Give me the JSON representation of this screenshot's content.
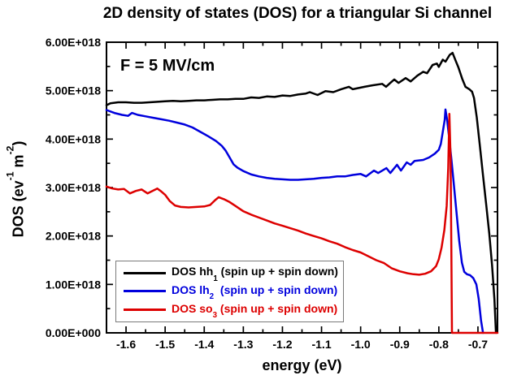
{
  "chart_data": {
    "type": "line",
    "title": "2D density of states (DOS) for a triangular Si channel",
    "annotation": "F = 5 MV/cm",
    "xlabel": "energy (eV)",
    "ylabel": "DOS (ev^-1 m^-2)",
    "ylabel_parts": [
      {
        "text": "DOS (ev"
      },
      {
        "sup": "-1"
      },
      {
        "text": " m"
      },
      {
        "sup": "-2"
      },
      {
        "text": ")"
      }
    ],
    "xlim": [
      -1.65,
      -0.65
    ],
    "ylim": [
      0,
      6e+18
    ],
    "y_value_scale": 1e+18,
    "grid": false,
    "x_major_ticks": [
      -1.6,
      -1.5,
      -1.4,
      -1.3,
      -1.2,
      -1.1,
      -1.0,
      -0.9,
      -0.8,
      -0.7
    ],
    "x_tick_labels": [
      "-1.6",
      "-1.5",
      "-1.4",
      "-1.3",
      "-1.2",
      "-1.1",
      "-1.0",
      "-0.9",
      "-0.8",
      "-0.7"
    ],
    "x_minor_step": 0.05,
    "y_major_ticks": [
      0,
      1,
      2,
      3,
      4,
      5,
      6
    ],
    "y_minor_ticks": [
      0.5,
      1.5,
      2.5,
      3.5,
      4.5,
      5.5
    ],
    "y_tick_labels": [
      "0.00E+000",
      "1.00E+018",
      "2.00E+018",
      "3.00E+018",
      "4.00E+018",
      "5.00E+018",
      "6.00E+018"
    ],
    "legend": {
      "position": "bottom-left",
      "border_color": "#7a7a7a",
      "entries": [
        {
          "id": "hh1",
          "color": "#000000",
          "label": "DOS hh1 (spin up + spin down)",
          "label_parts": {
            "prefix": "DOS hh",
            "sub": "1",
            "suffix": " (spin up + spin down)"
          }
        },
        {
          "id": "lh2",
          "color": "#0000dd",
          "label": "DOS lh2 (spin up + spin down)",
          "label_parts": {
            "prefix": "DOS lh",
            "sub": "2",
            "suffix": "  (spin up + spin down)"
          }
        },
        {
          "id": "so3",
          "color": "#dd0000",
          "label": "DOS so3 (spin up + spin down)",
          "label_parts": {
            "prefix": "DOS so",
            "sub": "3",
            "suffix": " (spin up + spin down)"
          }
        }
      ]
    },
    "series": [
      {
        "id": "hh1",
        "name": "DOS hh1 (spin up + spin down)",
        "color": "#000000",
        "points_in_1e18": [
          [
            -1.65,
            4.7
          ],
          [
            -1.64,
            4.74
          ],
          [
            -1.62,
            4.76
          ],
          [
            -1.6,
            4.76
          ],
          [
            -1.58,
            4.75
          ],
          [
            -1.56,
            4.75
          ],
          [
            -1.54,
            4.76
          ],
          [
            -1.52,
            4.77
          ],
          [
            -1.5,
            4.78
          ],
          [
            -1.48,
            4.79
          ],
          [
            -1.46,
            4.78
          ],
          [
            -1.44,
            4.79
          ],
          [
            -1.42,
            4.8
          ],
          [
            -1.4,
            4.8
          ],
          [
            -1.38,
            4.81
          ],
          [
            -1.36,
            4.82
          ],
          [
            -1.34,
            4.82
          ],
          [
            -1.32,
            4.83
          ],
          [
            -1.3,
            4.83
          ],
          [
            -1.28,
            4.86
          ],
          [
            -1.26,
            4.85
          ],
          [
            -1.24,
            4.88
          ],
          [
            -1.22,
            4.87
          ],
          [
            -1.2,
            4.9
          ],
          [
            -1.18,
            4.89
          ],
          [
            -1.16,
            4.92
          ],
          [
            -1.14,
            4.94
          ],
          [
            -1.13,
            4.97
          ],
          [
            -1.11,
            4.91
          ],
          [
            -1.09,
            4.99
          ],
          [
            -1.07,
            4.97
          ],
          [
            -1.05,
            5.03
          ],
          [
            -1.03,
            5.08
          ],
          [
            -1.02,
            5.03
          ],
          [
            -0.99,
            5.08
          ],
          [
            -0.97,
            5.11
          ],
          [
            -0.945,
            5.14
          ],
          [
            -0.935,
            5.08
          ],
          [
            -0.924,
            5.16
          ],
          [
            -0.914,
            5.23
          ],
          [
            -0.903,
            5.16
          ],
          [
            -0.885,
            5.26
          ],
          [
            -0.872,
            5.19
          ],
          [
            -0.855,
            5.31
          ],
          [
            -0.84,
            5.39
          ],
          [
            -0.83,
            5.36
          ],
          [
            -0.816,
            5.53
          ],
          [
            -0.805,
            5.56
          ],
          [
            -0.8,
            5.49
          ],
          [
            -0.79,
            5.64
          ],
          [
            -0.783,
            5.6
          ],
          [
            -0.772,
            5.74
          ],
          [
            -0.765,
            5.78
          ],
          [
            -0.757,
            5.62
          ],
          [
            -0.75,
            5.48
          ],
          [
            -0.74,
            5.24
          ],
          [
            -0.732,
            5.08
          ],
          [
            -0.722,
            5.03
          ],
          [
            -0.715,
            4.98
          ],
          [
            -0.71,
            4.85
          ],
          [
            -0.703,
            4.45
          ],
          [
            -0.695,
            3.85
          ],
          [
            -0.687,
            3.25
          ],
          [
            -0.679,
            2.65
          ],
          [
            -0.671,
            2.05
          ],
          [
            -0.664,
            1.4
          ],
          [
            -0.658,
            0.7
          ],
          [
            -0.654,
            0.0
          ]
        ]
      },
      {
        "id": "lh2",
        "name": "DOS lh2 (spin up + spin down)",
        "color": "#0000dd",
        "points_in_1e18": [
          [
            -1.65,
            4.6
          ],
          [
            -1.63,
            4.54
          ],
          [
            -1.61,
            4.5
          ],
          [
            -1.595,
            4.48
          ],
          [
            -1.585,
            4.54
          ],
          [
            -1.57,
            4.5
          ],
          [
            -1.55,
            4.47
          ],
          [
            -1.53,
            4.44
          ],
          [
            -1.51,
            4.41
          ],
          [
            -1.49,
            4.38
          ],
          [
            -1.47,
            4.34
          ],
          [
            -1.45,
            4.3
          ],
          [
            -1.43,
            4.24
          ],
          [
            -1.41,
            4.15
          ],
          [
            -1.39,
            4.06
          ],
          [
            -1.37,
            3.96
          ],
          [
            -1.355,
            3.86
          ],
          [
            -1.345,
            3.76
          ],
          [
            -1.335,
            3.62
          ],
          [
            -1.325,
            3.48
          ],
          [
            -1.315,
            3.41
          ],
          [
            -1.3,
            3.34
          ],
          [
            -1.28,
            3.27
          ],
          [
            -1.26,
            3.23
          ],
          [
            -1.24,
            3.2
          ],
          [
            -1.22,
            3.18
          ],
          [
            -1.2,
            3.17
          ],
          [
            -1.18,
            3.16
          ],
          [
            -1.16,
            3.16
          ],
          [
            -1.14,
            3.17
          ],
          [
            -1.12,
            3.18
          ],
          [
            -1.1,
            3.2
          ],
          [
            -1.08,
            3.21
          ],
          [
            -1.06,
            3.23
          ],
          [
            -1.04,
            3.23
          ],
          [
            -1.02,
            3.26
          ],
          [
            -1.0,
            3.28
          ],
          [
            -0.986,
            3.23
          ],
          [
            -0.966,
            3.35
          ],
          [
            -0.955,
            3.3
          ],
          [
            -0.934,
            3.4
          ],
          [
            -0.924,
            3.3
          ],
          [
            -0.907,
            3.47
          ],
          [
            -0.897,
            3.35
          ],
          [
            -0.882,
            3.52
          ],
          [
            -0.872,
            3.47
          ],
          [
            -0.862,
            3.55
          ],
          [
            -0.84,
            3.57
          ],
          [
            -0.825,
            3.62
          ],
          [
            -0.81,
            3.7
          ],
          [
            -0.8,
            3.78
          ],
          [
            -0.795,
            3.9
          ],
          [
            -0.79,
            4.15
          ],
          [
            -0.785,
            4.4
          ],
          [
            -0.783,
            4.61
          ],
          [
            -0.779,
            4.4
          ],
          [
            -0.774,
            4.05
          ],
          [
            -0.768,
            3.6
          ],
          [
            -0.762,
            3.1
          ],
          [
            -0.755,
            2.5
          ],
          [
            -0.748,
            1.9
          ],
          [
            -0.741,
            1.45
          ],
          [
            -0.735,
            1.26
          ],
          [
            -0.728,
            1.21
          ],
          [
            -0.72,
            1.19
          ],
          [
            -0.712,
            1.13
          ],
          [
            -0.704,
            1.0
          ],
          [
            -0.698,
            0.7
          ],
          [
            -0.692,
            0.25
          ],
          [
            -0.687,
            0.0
          ]
        ]
      },
      {
        "id": "so3",
        "name": "DOS so3 (spin up + spin down)",
        "color": "#dd0000",
        "points_in_1e18": [
          [
            -1.65,
            3.02
          ],
          [
            -1.635,
            2.98
          ],
          [
            -1.62,
            2.96
          ],
          [
            -1.605,
            2.97
          ],
          [
            -1.59,
            2.88
          ],
          [
            -1.575,
            2.93
          ],
          [
            -1.56,
            2.96
          ],
          [
            -1.545,
            2.88
          ],
          [
            -1.53,
            2.94
          ],
          [
            -1.52,
            2.98
          ],
          [
            -1.51,
            2.92
          ],
          [
            -1.5,
            2.85
          ],
          [
            -1.488,
            2.72
          ],
          [
            -1.475,
            2.63
          ],
          [
            -1.46,
            2.6
          ],
          [
            -1.44,
            2.59
          ],
          [
            -1.42,
            2.6
          ],
          [
            -1.4,
            2.61
          ],
          [
            -1.385,
            2.64
          ],
          [
            -1.372,
            2.74
          ],
          [
            -1.363,
            2.8
          ],
          [
            -1.35,
            2.76
          ],
          [
            -1.335,
            2.7
          ],
          [
            -1.32,
            2.62
          ],
          [
            -1.3,
            2.51
          ],
          [
            -1.28,
            2.44
          ],
          [
            -1.26,
            2.38
          ],
          [
            -1.24,
            2.32
          ],
          [
            -1.22,
            2.26
          ],
          [
            -1.2,
            2.21
          ],
          [
            -1.18,
            2.16
          ],
          [
            -1.16,
            2.11
          ],
          [
            -1.14,
            2.05
          ],
          [
            -1.12,
            2.0
          ],
          [
            -1.1,
            1.95
          ],
          [
            -1.08,
            1.89
          ],
          [
            -1.06,
            1.84
          ],
          [
            -1.04,
            1.77
          ],
          [
            -1.02,
            1.71
          ],
          [
            -1.0,
            1.66
          ],
          [
            -0.98,
            1.58
          ],
          [
            -0.96,
            1.5
          ],
          [
            -0.94,
            1.44
          ],
          [
            -0.92,
            1.33
          ],
          [
            -0.9,
            1.27
          ],
          [
            -0.88,
            1.23
          ],
          [
            -0.865,
            1.21
          ],
          [
            -0.85,
            1.2
          ],
          [
            -0.835,
            1.22
          ],
          [
            -0.82,
            1.27
          ],
          [
            -0.807,
            1.38
          ],
          [
            -0.8,
            1.52
          ],
          [
            -0.793,
            1.76
          ],
          [
            -0.786,
            2.12
          ],
          [
            -0.78,
            2.62
          ],
          [
            -0.776,
            3.4
          ],
          [
            -0.773,
            4.52
          ],
          [
            -0.77,
            3.6
          ],
          [
            -0.768,
            1.8
          ],
          [
            -0.7665,
            0.0
          ],
          [
            -0.65,
            0.0
          ]
        ]
      }
    ]
  }
}
